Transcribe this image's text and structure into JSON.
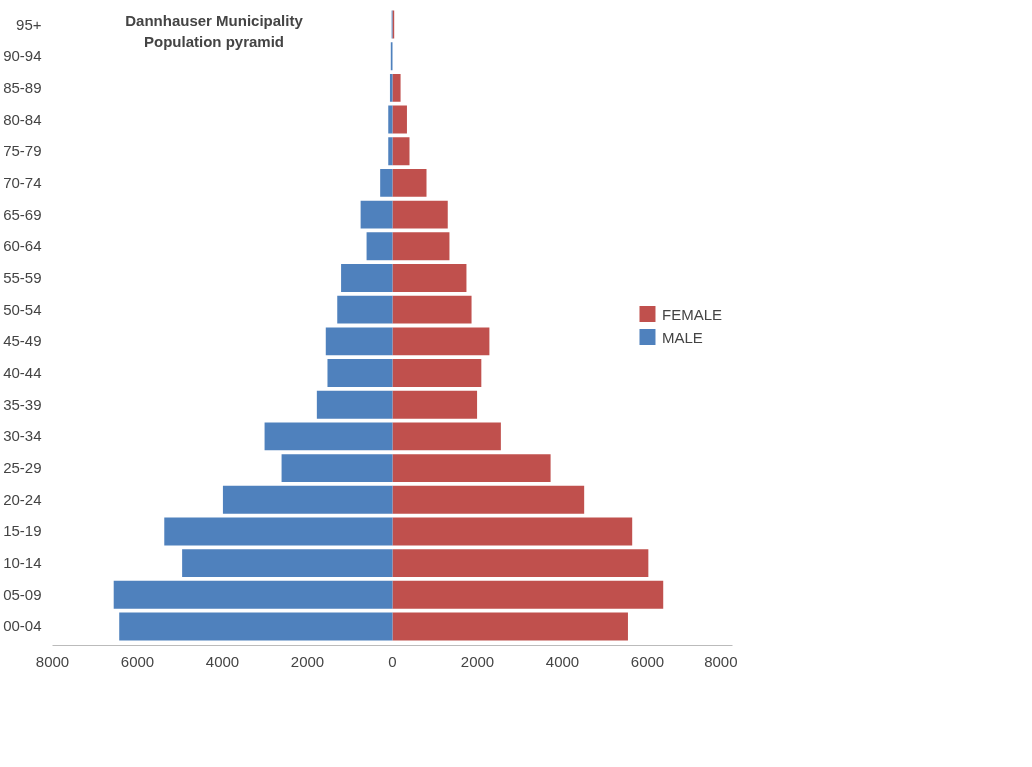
{
  "chart_data": {
    "type": "bar",
    "orientation": "horizontal",
    "stacked": true,
    "title": "Dannhauser Municipality\nPopulation pyramid",
    "categories": [
      "95+",
      "90-94",
      "85-89",
      "80-84",
      "75-79",
      "70-74",
      "65-69",
      "60-64",
      "55-59",
      "50-54",
      "45-49",
      "40-44",
      "35-39",
      "30-34",
      "25-29",
      "20-24",
      "15-19",
      "10-14",
      "05-09",
      "00-04"
    ],
    "series": [
      {
        "name": "FEMALE",
        "color": "#c0504d",
        "values": [
          40,
          null,
          190,
          340,
          400,
          800,
          1300,
          1340,
          1740,
          1860,
          2280,
          2090,
          1990,
          2550,
          3720,
          4510,
          5640,
          6020,
          6370,
          5540
        ]
      },
      {
        "name": "MALE",
        "color": "#4f81bd",
        "values": [
          -20,
          -40,
          -60,
          -100,
          -100,
          -290,
          -750,
          -610,
          -1210,
          -1300,
          -1570,
          -1530,
          -1780,
          -3010,
          -2610,
          -3990,
          -5370,
          -4950,
          -6560,
          -6430
        ]
      }
    ],
    "xlim": [
      -8000,
      8000
    ],
    "xticks": [
      {
        "value": -8000,
        "label": "8000"
      },
      {
        "value": -6000,
        "label": "6000"
      },
      {
        "value": -4000,
        "label": "4000"
      },
      {
        "value": -2000,
        "label": "2000"
      },
      0,
      2000,
      4000,
      6000,
      8000
    ],
    "grid": false,
    "legend": "right"
  }
}
